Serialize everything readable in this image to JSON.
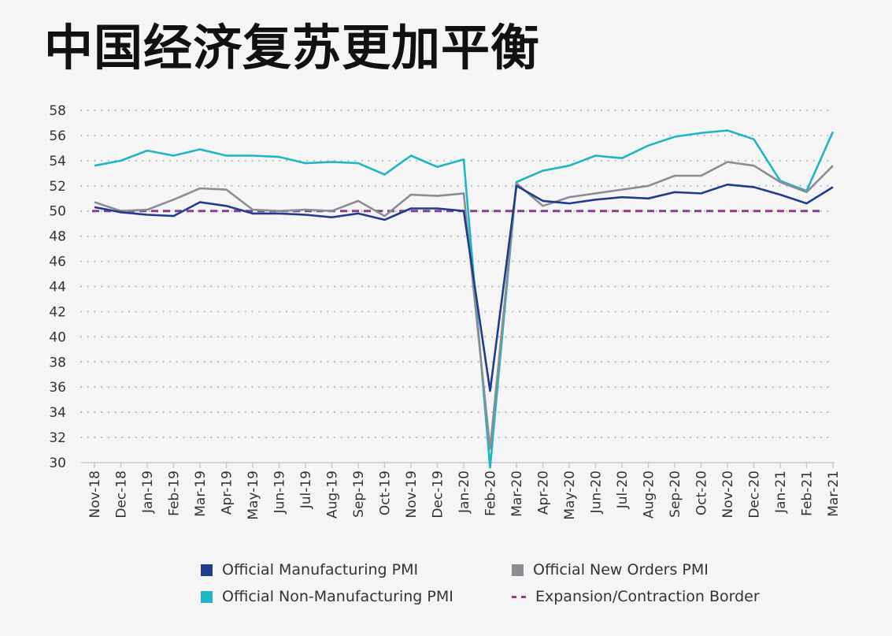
{
  "title": "中国经济复苏更加平衡",
  "chart_data": {
    "type": "line",
    "categories": [
      "Nov-18",
      "Dec-18",
      "Jan-19",
      "Feb-19",
      "Mar-19",
      "Apr-19",
      "May-19",
      "Jun-19",
      "Jul-19",
      "Aug-19",
      "Sep-19",
      "Oct-19",
      "Nov-19",
      "Dec-19",
      "Jan-20",
      "Feb-20",
      "Mar-20",
      "Apr-20",
      "May-20",
      "Jun-20",
      "Jul-20",
      "Aug-20",
      "Sep-20",
      "Oct-20",
      "Nov-20",
      "Dec-20",
      "Jan-21",
      "Feb-21",
      "Mar-21"
    ],
    "ylim": [
      30,
      58
    ],
    "yticks": [
      "30",
      "32",
      "34",
      "36",
      "38",
      "40",
      "42",
      "44",
      "46",
      "48",
      "50",
      "52",
      "54",
      "56",
      "58"
    ],
    "grid": "horizontal dotted",
    "legend_position": "bottom",
    "series": [
      {
        "name": "Official Non-Manufacturing PMI",
        "color": "#1fb5c4",
        "values": [
          53.6,
          54.0,
          54.8,
          54.4,
          54.9,
          54.4,
          54.4,
          54.3,
          53.8,
          53.9,
          53.8,
          52.9,
          54.4,
          53.5,
          54.1,
          29.6,
          52.3,
          53.2,
          53.6,
          54.4,
          54.2,
          55.2,
          55.9,
          56.2,
          56.4,
          55.7,
          52.4,
          51.6,
          56.3
        ]
      },
      {
        "name": "Official New Orders PMI",
        "color": "#8a8d93",
        "values": [
          50.7,
          50.0,
          50.1,
          50.9,
          51.8,
          51.7,
          50.1,
          50.0,
          50.1,
          50.0,
          50.8,
          49.6,
          51.3,
          51.2,
          51.4,
          31.1,
          52.2,
          50.4,
          51.1,
          51.4,
          51.7,
          52.0,
          52.8,
          52.8,
          53.9,
          53.6,
          52.3,
          51.5,
          53.6
        ]
      },
      {
        "name": "Official Manufacturing PMI",
        "color": "#1f3d8a",
        "values": [
          50.3,
          49.9,
          49.7,
          49.6,
          50.7,
          50.4,
          49.8,
          49.8,
          49.7,
          49.5,
          49.8,
          49.3,
          50.2,
          50.2,
          50.0,
          35.7,
          52.0,
          50.8,
          50.6,
          50.9,
          51.1,
          51.0,
          51.5,
          51.4,
          52.1,
          51.9,
          51.3,
          50.6,
          51.9
        ]
      },
      {
        "name": "Expansion/Contraction Border",
        "color": "#8f3b96",
        "dashed": true,
        "values": [
          50,
          50,
          50,
          50,
          50,
          50,
          50,
          50,
          50,
          50,
          50,
          50,
          50,
          50,
          50,
          50,
          50,
          50,
          50,
          50,
          50,
          50,
          50,
          50,
          50,
          50,
          50,
          50,
          50
        ]
      }
    ]
  },
  "legend": [
    {
      "label": "Official Manufacturing PMI",
      "color": "#1f3d8a",
      "kind": "box"
    },
    {
      "label": "Official New Orders PMI",
      "color": "#8a8d93",
      "kind": "box"
    },
    {
      "label": "Official Non-Manufacturing PMI",
      "color": "#1fb5c4",
      "kind": "box"
    },
    {
      "label": "Expansion/Contraction Border",
      "color": "#8f3b96",
      "kind": "dash"
    }
  ]
}
